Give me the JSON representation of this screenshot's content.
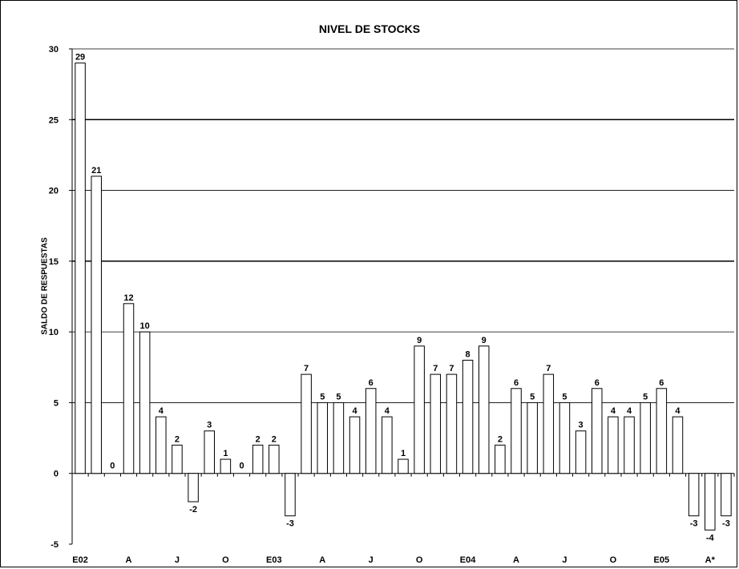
{
  "chart_data": {
    "type": "bar",
    "title": "NIVEL DE STOCKS",
    "ylabel": "SALDO DE RESPUESTAS",
    "xlabel": "",
    "ylim": [
      -5,
      30
    ],
    "yticks": [
      -5,
      0,
      5,
      10,
      15,
      20,
      25,
      30
    ],
    "grid": true,
    "x_labels": [
      {
        "index": 0,
        "label": "E02"
      },
      {
        "index": 3,
        "label": "A"
      },
      {
        "index": 6,
        "label": "J"
      },
      {
        "index": 9,
        "label": "O"
      },
      {
        "index": 12,
        "label": "E03"
      },
      {
        "index": 15,
        "label": "A"
      },
      {
        "index": 18,
        "label": "J"
      },
      {
        "index": 21,
        "label": "O"
      },
      {
        "index": 24,
        "label": "E04"
      },
      {
        "index": 27,
        "label": "A"
      },
      {
        "index": 30,
        "label": "J"
      },
      {
        "index": 33,
        "label": "O"
      },
      {
        "index": 36,
        "label": "E05"
      },
      {
        "index": 39,
        "label": "A*"
      }
    ],
    "values": [
      29,
      21,
      0,
      12,
      10,
      4,
      2,
      -2,
      3,
      1,
      0,
      2,
      2,
      -3,
      7,
      5,
      5,
      4,
      6,
      4,
      1,
      9,
      7,
      7,
      8,
      9,
      2,
      6,
      5,
      7,
      5,
      3,
      6,
      4,
      4,
      5,
      6,
      4,
      -3,
      -4,
      -3
    ]
  },
  "colors": {
    "bar_fill": "#ffffff",
    "bar_stroke": "#000000",
    "grid": "#000000"
  }
}
